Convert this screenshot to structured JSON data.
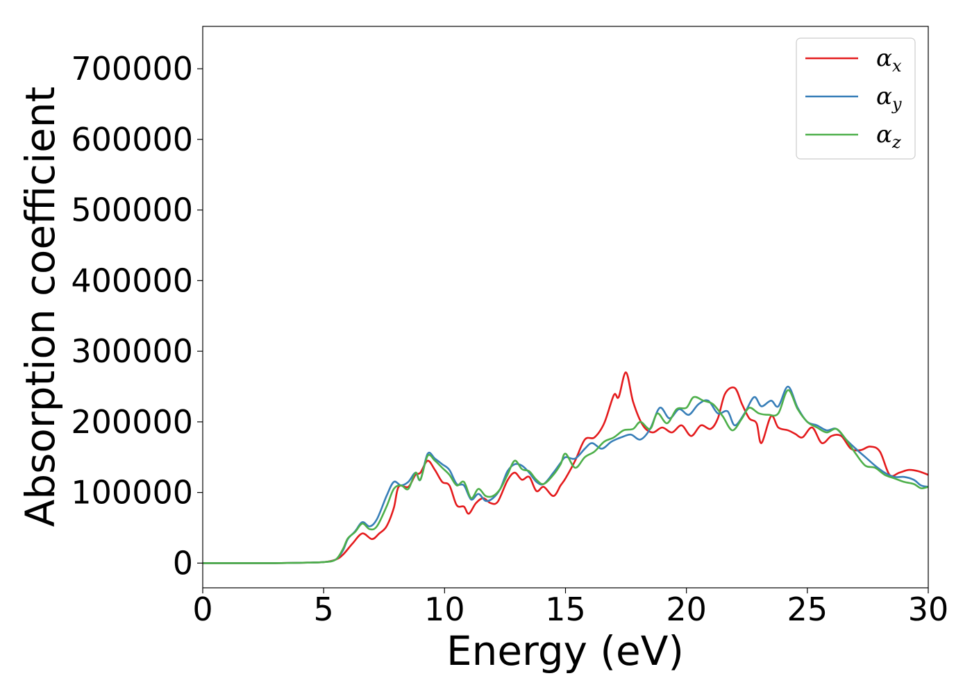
{
  "chart_data": {
    "type": "line",
    "title": "",
    "xlabel": "Energy (eV)",
    "ylabel": "Absorption coefficient",
    "xlim": [
      0,
      30
    ],
    "ylim": [
      -35000,
      760000
    ],
    "xticks": [
      0,
      5,
      10,
      15,
      20,
      25,
      30
    ],
    "yticks": [
      0,
      100000,
      200000,
      300000,
      400000,
      500000,
      600000,
      700000
    ],
    "grid": false,
    "legend": {
      "placement": "top-right",
      "entries": [
        {
          "base": "α",
          "sub": "x"
        },
        {
          "base": "α",
          "sub": "y"
        },
        {
          "base": "α",
          "sub": "z"
        }
      ]
    },
    "series": [
      {
        "name": "α_x",
        "color": "#e41a1c",
        "points": [
          [
            0,
            0
          ],
          [
            1,
            0
          ],
          [
            2,
            0
          ],
          [
            3,
            0
          ],
          [
            4,
            500
          ],
          [
            5,
            1500
          ],
          [
            5.5,
            5000
          ],
          [
            5.8,
            12000
          ],
          [
            6.2,
            28000
          ],
          [
            6.6,
            42000
          ],
          [
            7.0,
            34000
          ],
          [
            7.3,
            42000
          ],
          [
            7.6,
            52000
          ],
          [
            7.9,
            78000
          ],
          [
            8.1,
            108000
          ],
          [
            8.5,
            108000
          ],
          [
            8.8,
            125000
          ],
          [
            9.0,
            128000
          ],
          [
            9.3,
            145000
          ],
          [
            9.6,
            132000
          ],
          [
            9.9,
            115000
          ],
          [
            10.2,
            110000
          ],
          [
            10.5,
            82000
          ],
          [
            10.8,
            80000
          ],
          [
            11.0,
            70000
          ],
          [
            11.3,
            85000
          ],
          [
            11.6,
            92000
          ],
          [
            11.9,
            85000
          ],
          [
            12.2,
            87000
          ],
          [
            12.6,
            117000
          ],
          [
            12.9,
            128000
          ],
          [
            13.2,
            118000
          ],
          [
            13.5,
            122000
          ],
          [
            13.8,
            102000
          ],
          [
            14.1,
            108000
          ],
          [
            14.5,
            95000
          ],
          [
            14.8,
            110000
          ],
          [
            15.0,
            120000
          ],
          [
            15.4,
            145000
          ],
          [
            15.8,
            175000
          ],
          [
            16.2,
            178000
          ],
          [
            16.6,
            198000
          ],
          [
            17.0,
            238000
          ],
          [
            17.2,
            235000
          ],
          [
            17.5,
            270000
          ],
          [
            17.8,
            228000
          ],
          [
            18.2,
            195000
          ],
          [
            18.6,
            185000
          ],
          [
            19.0,
            192000
          ],
          [
            19.4,
            185000
          ],
          [
            19.8,
            195000
          ],
          [
            20.2,
            180000
          ],
          [
            20.6,
            195000
          ],
          [
            21.0,
            190000
          ],
          [
            21.3,
            205000
          ],
          [
            21.6,
            240000
          ],
          [
            22.0,
            248000
          ],
          [
            22.3,
            225000
          ],
          [
            22.6,
            205000
          ],
          [
            22.9,
            198000
          ],
          [
            23.1,
            170000
          ],
          [
            23.5,
            208000
          ],
          [
            23.8,
            192000
          ],
          [
            24.2,
            188000
          ],
          [
            24.5,
            183000
          ],
          [
            24.8,
            178000
          ],
          [
            25.2,
            192000
          ],
          [
            25.6,
            170000
          ],
          [
            26.0,
            180000
          ],
          [
            26.4,
            180000
          ],
          [
            26.8,
            162000
          ],
          [
            27.2,
            160000
          ],
          [
            27.6,
            165000
          ],
          [
            28.0,
            158000
          ],
          [
            28.4,
            125000
          ],
          [
            28.8,
            128000
          ],
          [
            29.2,
            132000
          ],
          [
            29.6,
            130000
          ],
          [
            30.0,
            125000
          ]
        ]
      },
      {
        "name": "α_y",
        "color": "#377eb8",
        "points": [
          [
            0,
            0
          ],
          [
            1,
            0
          ],
          [
            2,
            0
          ],
          [
            3,
            0
          ],
          [
            4,
            500
          ],
          [
            5,
            1500
          ],
          [
            5.5,
            5000
          ],
          [
            5.8,
            18000
          ],
          [
            6.0,
            34000
          ],
          [
            6.3,
            45000
          ],
          [
            6.6,
            58000
          ],
          [
            6.9,
            52000
          ],
          [
            7.2,
            62000
          ],
          [
            7.6,
            95000
          ],
          [
            7.9,
            115000
          ],
          [
            8.2,
            110000
          ],
          [
            8.5,
            115000
          ],
          [
            8.8,
            128000
          ],
          [
            9.0,
            118000
          ],
          [
            9.3,
            155000
          ],
          [
            9.6,
            148000
          ],
          [
            9.9,
            140000
          ],
          [
            10.2,
            132000
          ],
          [
            10.5,
            112000
          ],
          [
            10.8,
            110000
          ],
          [
            11.1,
            90000
          ],
          [
            11.4,
            98000
          ],
          [
            11.7,
            88000
          ],
          [
            12.0,
            92000
          ],
          [
            12.3,
            105000
          ],
          [
            12.6,
            130000
          ],
          [
            12.9,
            140000
          ],
          [
            13.2,
            138000
          ],
          [
            13.5,
            128000
          ],
          [
            13.8,
            115000
          ],
          [
            14.1,
            112000
          ],
          [
            14.5,
            128000
          ],
          [
            14.8,
            142000
          ],
          [
            15.0,
            150000
          ],
          [
            15.4,
            148000
          ],
          [
            15.8,
            162000
          ],
          [
            16.1,
            170000
          ],
          [
            16.5,
            162000
          ],
          [
            16.9,
            172000
          ],
          [
            17.3,
            178000
          ],
          [
            17.7,
            182000
          ],
          [
            18.1,
            175000
          ],
          [
            18.5,
            190000
          ],
          [
            18.9,
            220000
          ],
          [
            19.3,
            205000
          ],
          [
            19.7,
            218000
          ],
          [
            20.1,
            210000
          ],
          [
            20.5,
            225000
          ],
          [
            20.9,
            230000
          ],
          [
            21.3,
            212000
          ],
          [
            21.7,
            215000
          ],
          [
            22.0,
            195000
          ],
          [
            22.4,
            212000
          ],
          [
            22.8,
            235000
          ],
          [
            23.1,
            222000
          ],
          [
            23.5,
            230000
          ],
          [
            23.8,
            222000
          ],
          [
            24.2,
            250000
          ],
          [
            24.6,
            220000
          ],
          [
            25.0,
            200000
          ],
          [
            25.4,
            195000
          ],
          [
            25.8,
            188000
          ],
          [
            26.2,
            190000
          ],
          [
            26.6,
            175000
          ],
          [
            27.0,
            162000
          ],
          [
            27.4,
            150000
          ],
          [
            27.8,
            138000
          ],
          [
            28.2,
            128000
          ],
          [
            28.6,
            122000
          ],
          [
            29.0,
            122000
          ],
          [
            29.4,
            118000
          ],
          [
            29.7,
            110000
          ],
          [
            30.0,
            108000
          ]
        ]
      },
      {
        "name": "α_z",
        "color": "#4daf4a",
        "points": [
          [
            0,
            0
          ],
          [
            1,
            0
          ],
          [
            2,
            0
          ],
          [
            3,
            0
          ],
          [
            4,
            500
          ],
          [
            5,
            1500
          ],
          [
            5.5,
            5000
          ],
          [
            5.8,
            20000
          ],
          [
            6.0,
            35000
          ],
          [
            6.3,
            44000
          ],
          [
            6.6,
            56000
          ],
          [
            6.9,
            48000
          ],
          [
            7.2,
            52000
          ],
          [
            7.6,
            80000
          ],
          [
            7.9,
            105000
          ],
          [
            8.2,
            110000
          ],
          [
            8.5,
            105000
          ],
          [
            8.8,
            128000
          ],
          [
            9.0,
            118000
          ],
          [
            9.3,
            152000
          ],
          [
            9.6,
            145000
          ],
          [
            9.9,
            135000
          ],
          [
            10.2,
            125000
          ],
          [
            10.5,
            110000
          ],
          [
            10.8,
            115000
          ],
          [
            11.1,
            92000
          ],
          [
            11.4,
            105000
          ],
          [
            11.7,
            95000
          ],
          [
            12.0,
            95000
          ],
          [
            12.3,
            105000
          ],
          [
            12.6,
            125000
          ],
          [
            12.9,
            145000
          ],
          [
            13.2,
            133000
          ],
          [
            13.5,
            130000
          ],
          [
            13.8,
            118000
          ],
          [
            14.1,
            112000
          ],
          [
            14.5,
            125000
          ],
          [
            14.8,
            140000
          ],
          [
            15.0,
            155000
          ],
          [
            15.4,
            135000
          ],
          [
            15.8,
            150000
          ],
          [
            16.2,
            158000
          ],
          [
            16.6,
            172000
          ],
          [
            17.0,
            178000
          ],
          [
            17.4,
            188000
          ],
          [
            17.8,
            190000
          ],
          [
            18.1,
            200000
          ],
          [
            18.5,
            190000
          ],
          [
            18.8,
            212000
          ],
          [
            19.2,
            198000
          ],
          [
            19.6,
            218000
          ],
          [
            20.0,
            220000
          ],
          [
            20.3,
            235000
          ],
          [
            20.7,
            230000
          ],
          [
            21.1,
            225000
          ],
          [
            21.5,
            208000
          ],
          [
            21.9,
            188000
          ],
          [
            22.3,
            205000
          ],
          [
            22.6,
            220000
          ],
          [
            23.0,
            212000
          ],
          [
            23.4,
            210000
          ],
          [
            23.8,
            212000
          ],
          [
            24.2,
            245000
          ],
          [
            24.6,
            218000
          ],
          [
            25.0,
            200000
          ],
          [
            25.4,
            192000
          ],
          [
            25.8,
            185000
          ],
          [
            26.2,
            190000
          ],
          [
            26.6,
            175000
          ],
          [
            27.0,
            155000
          ],
          [
            27.4,
            138000
          ],
          [
            27.8,
            135000
          ],
          [
            28.2,
            125000
          ],
          [
            28.6,
            120000
          ],
          [
            29.0,
            115000
          ],
          [
            29.4,
            112000
          ],
          [
            29.7,
            106000
          ],
          [
            30.0,
            108000
          ]
        ]
      }
    ]
  }
}
